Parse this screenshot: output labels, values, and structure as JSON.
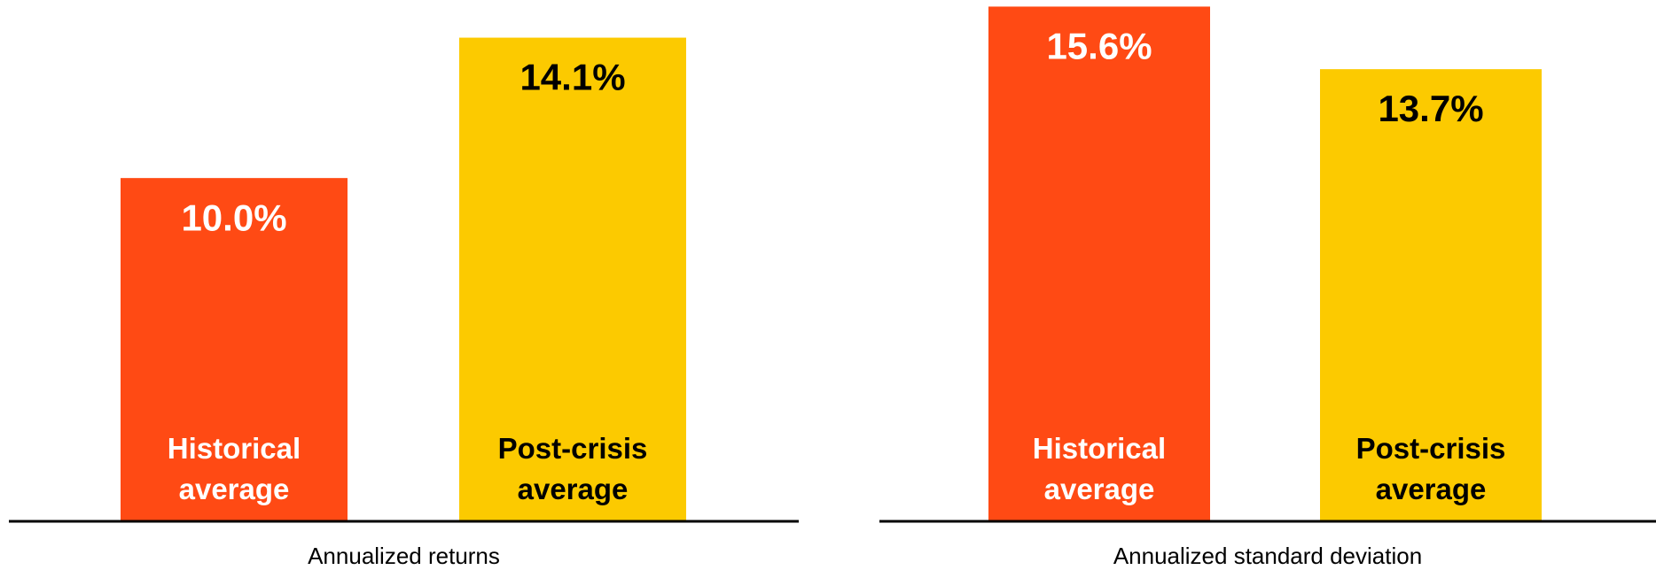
{
  "chart_data": [
    {
      "type": "bar",
      "xlabel": "Annualized returns",
      "categories": [
        "Historical average",
        "Post-crisis average"
      ],
      "values": [
        10.0,
        14.1
      ],
      "value_labels": [
        "10.0%",
        "14.1%"
      ],
      "colors": [
        "#ff4a14",
        "#fcca00"
      ],
      "ylim": [
        0,
        15.2
      ]
    },
    {
      "type": "bar",
      "xlabel": "Annualized standard deviation",
      "categories": [
        "Historical average",
        "Post-crisis average"
      ],
      "values": [
        15.6,
        13.7
      ],
      "value_labels": [
        "15.6%",
        "13.7%"
      ],
      "colors": [
        "#ff4a14",
        "#fcca00"
      ],
      "ylim": [
        0,
        15.8
      ]
    }
  ]
}
